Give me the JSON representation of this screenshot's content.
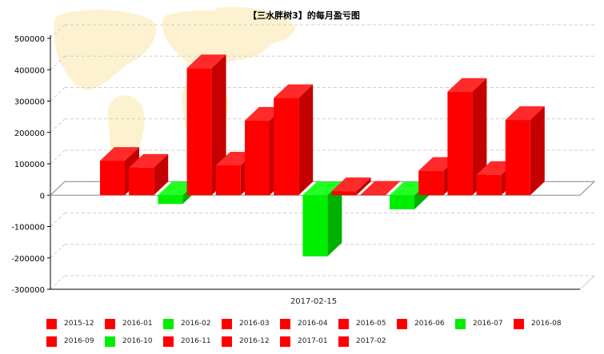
{
  "chart_data": {
    "type": "bar",
    "title": "【三水胖树3】的每月盈亏图",
    "xlabel": "2017-02-15",
    "ylabel": "",
    "ylim": [
      -300000,
      500000
    ],
    "yticks": [
      500000,
      400000,
      300000,
      200000,
      100000,
      0,
      -100000,
      -200000,
      -300000
    ],
    "grid": true,
    "legend": "bottom",
    "colors": {
      "positive": "#ff0000",
      "negative": "#00ee00"
    },
    "categories": [
      "2015-12",
      "2016-01",
      "2016-02",
      "2016-03",
      "2016-04",
      "2016-05",
      "2016-06",
      "2016-07",
      "2016-08",
      "2016-09",
      "2016-10",
      "2016-11",
      "2016-12",
      "2017-01",
      "2017-02"
    ],
    "values": [
      110000,
      88000,
      -28000,
      405000,
      95000,
      238000,
      310000,
      -195000,
      13000,
      2000,
      -45000,
      78000,
      330000,
      65000,
      240000
    ]
  }
}
